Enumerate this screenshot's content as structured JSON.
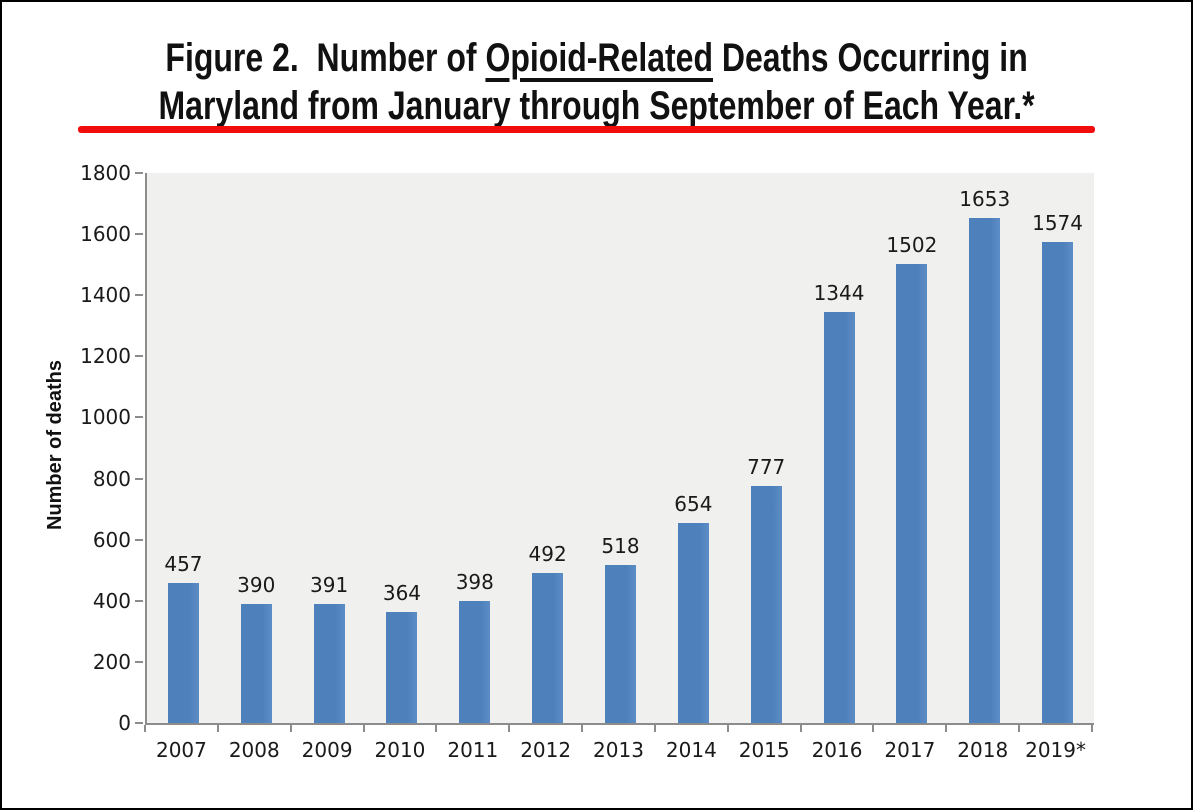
{
  "figure": {
    "label": "Figure 2.",
    "title_line1_prefix": "Figure 2.  Number of ",
    "title_line1_underlined": "Opioid-Related",
    "title_line1_suffix": " Deaths Occurring in",
    "title_line2": "Maryland from January through September of Each Year.*"
  },
  "colors": {
    "bar_blue": "#4e81bc",
    "bar_blue_light": "#5d8dc6",
    "plot_bg": "#f0f0ee",
    "axis_gray": "#8c8c8c",
    "text_black": "#1a1a1a",
    "accent_red": "#f20d0d"
  },
  "chart_data": {
    "type": "bar",
    "title": "Figure 2.  Number of Opioid-Related Deaths Occurring in Maryland from January through September of Each Year.*",
    "categories": [
      "2007",
      "2008",
      "2009",
      "2010",
      "2011",
      "2012",
      "2013",
      "2014",
      "2015",
      "2016",
      "2017",
      "2018",
      "2019*"
    ],
    "values": [
      457,
      390,
      391,
      364,
      398,
      492,
      518,
      654,
      777,
      1344,
      1502,
      1653,
      1574
    ],
    "xlabel": "",
    "ylabel": "Number of deaths",
    "ylim": [
      0,
      1800
    ],
    "ytick_interval": 200,
    "grid": false,
    "legend": "none",
    "value_labels": true
  }
}
